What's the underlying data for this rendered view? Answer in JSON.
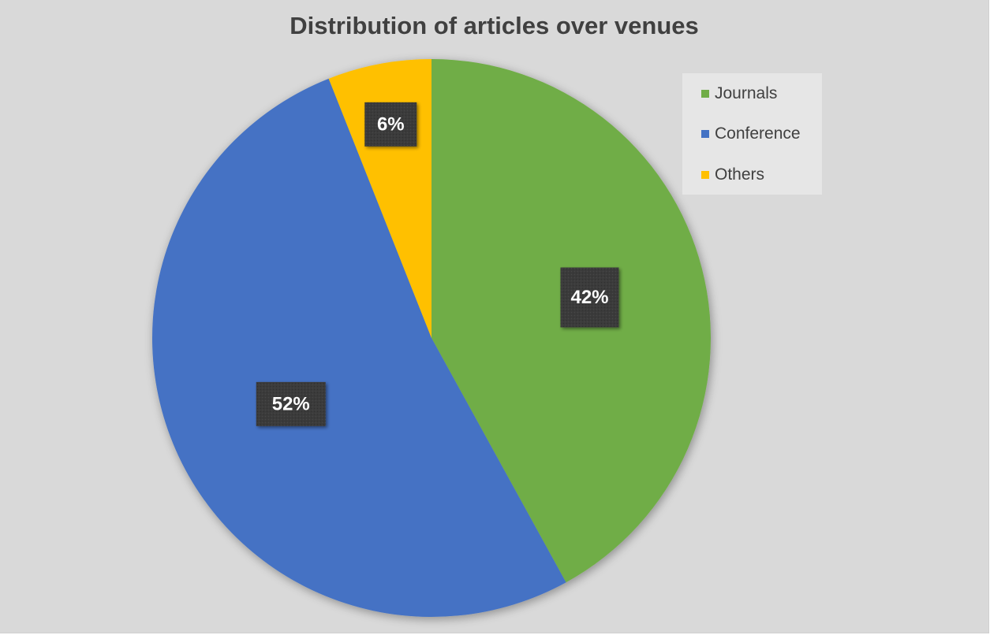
{
  "chart_data": {
    "type": "pie",
    "title": "Distribution of articles over venues",
    "start_angle_deg": 0,
    "direction": "clockwise",
    "categories": [
      "Journals",
      "Conference",
      "Others"
    ],
    "values": [
      42,
      52,
      6
    ],
    "labels": [
      "42%",
      "52%",
      "6%"
    ],
    "colors": [
      "#70ad47",
      "#4472c4",
      "#ffc000"
    ],
    "legend_position": "top-right",
    "label_style": {
      "background": "#3a3a3a",
      "text": "#ffffff"
    }
  }
}
